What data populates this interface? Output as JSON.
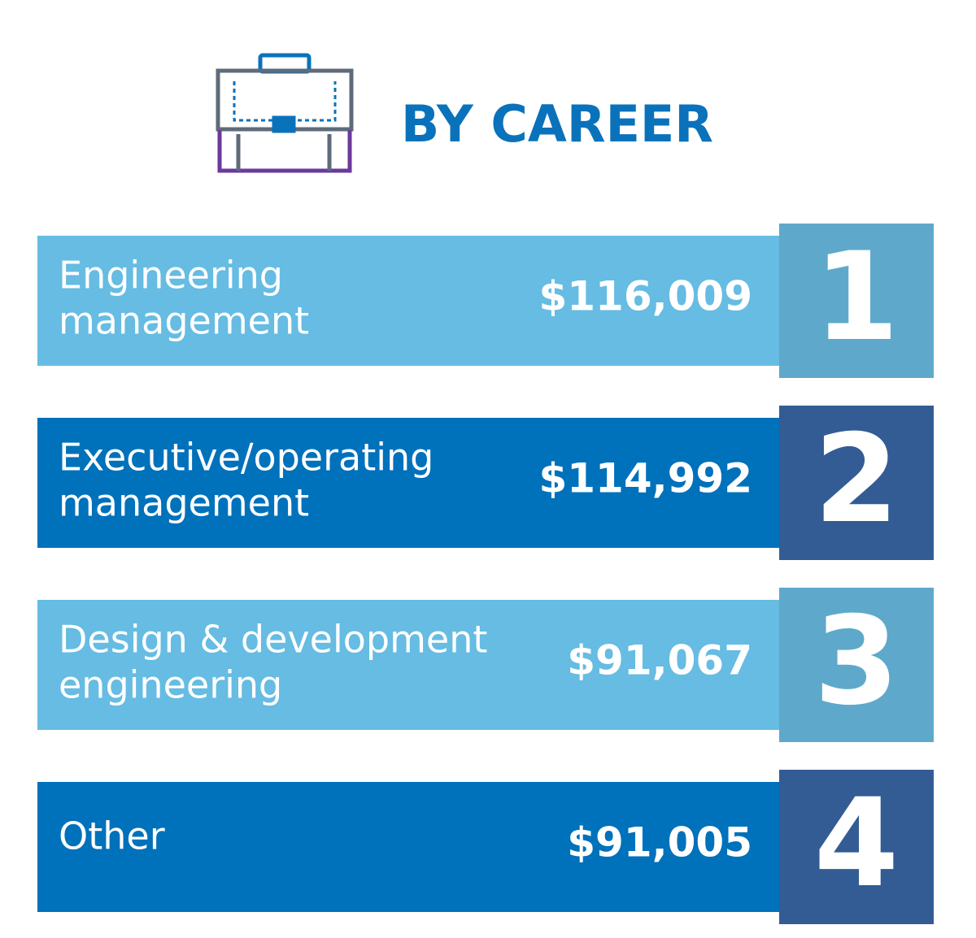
{
  "header": {
    "title": "BY CAREER"
  },
  "rows": [
    {
      "rank": 1,
      "label": [
        "Engineering",
        "management"
      ],
      "value": "$116,009"
    },
    {
      "rank": 2,
      "label": [
        "Executive/operating",
        "management"
      ],
      "value": "$114,992"
    },
    {
      "rank": 3,
      "label": [
        "Design & development",
        "engineering"
      ],
      "value": "$91,067"
    },
    {
      "rank": 4,
      "label": [
        "Other"
      ],
      "value": "$91,005"
    }
  ]
}
